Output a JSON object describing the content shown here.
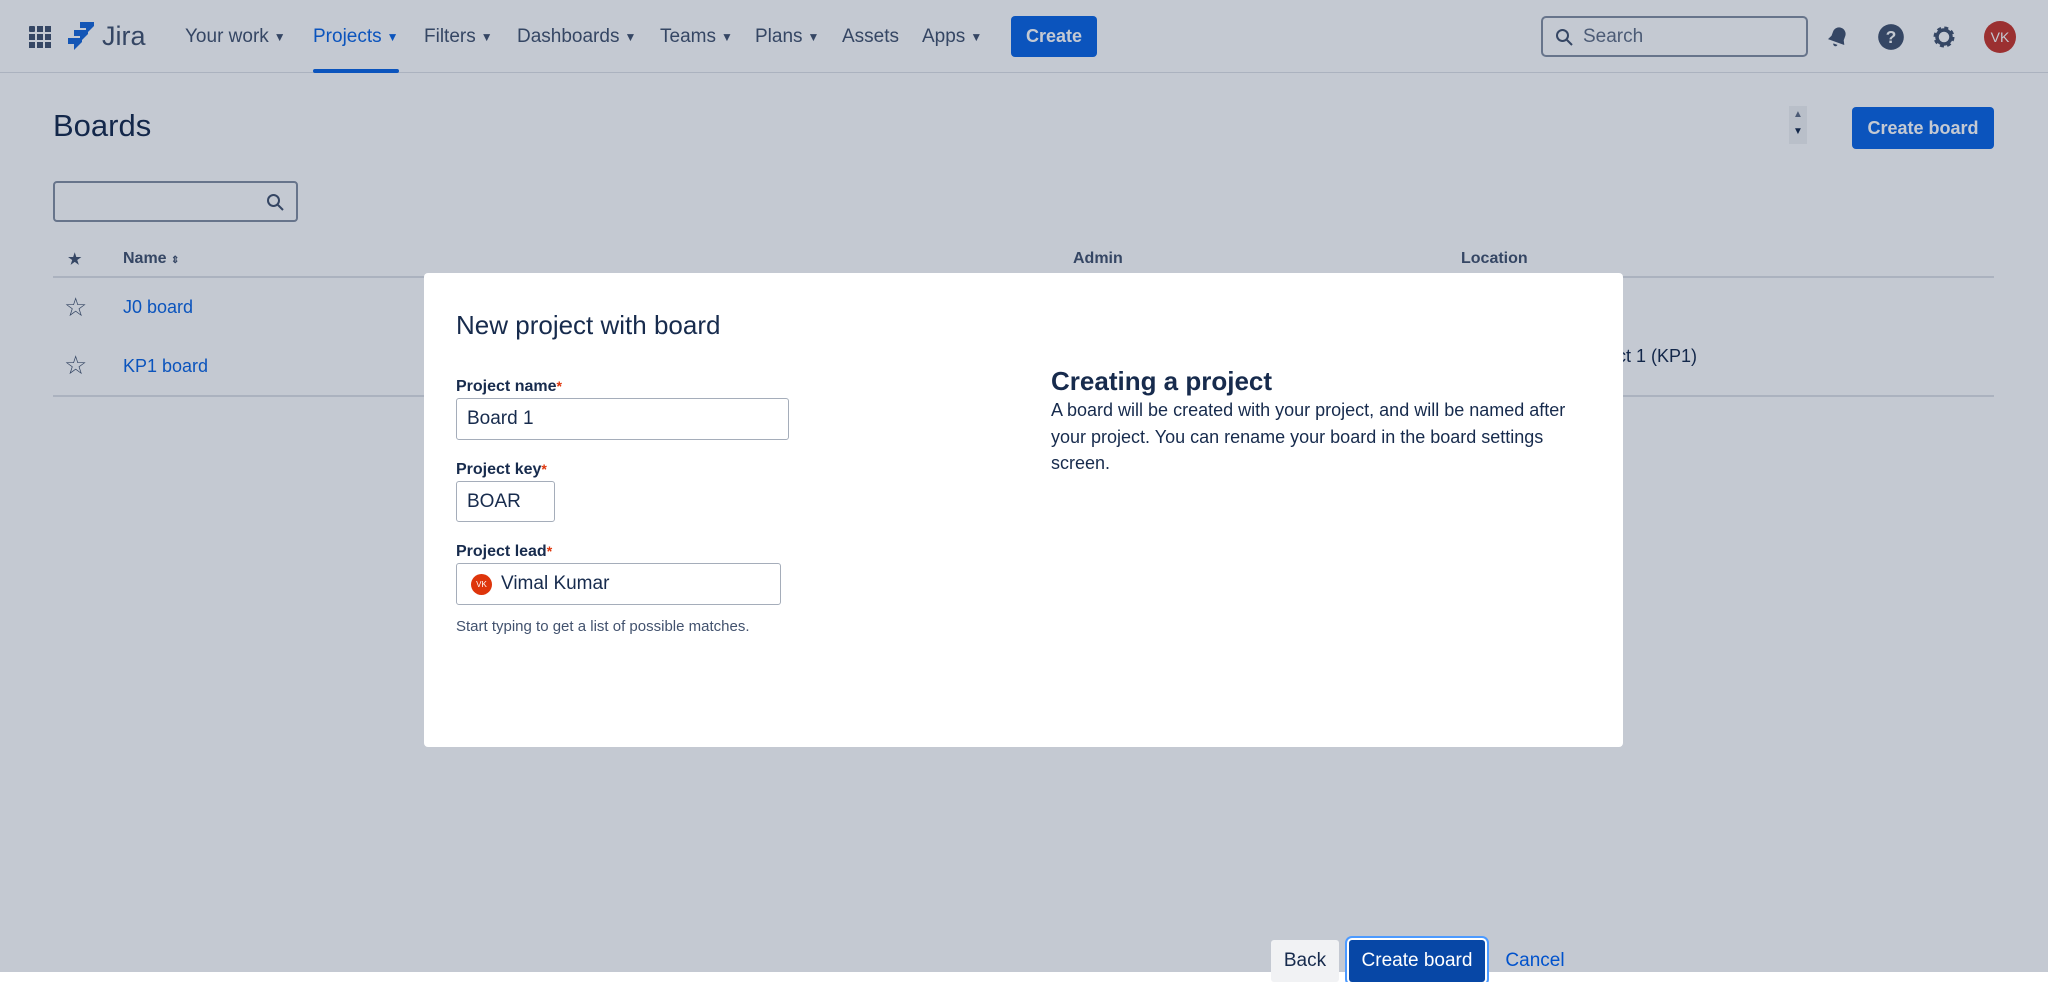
{
  "header": {
    "app_name": "Jira",
    "nav": [
      {
        "label": "Your work",
        "has_menu": true
      },
      {
        "label": "Projects",
        "has_menu": true,
        "active": true
      },
      {
        "label": "Filters",
        "has_menu": true
      },
      {
        "label": "Dashboards",
        "has_menu": true
      },
      {
        "label": "Teams",
        "has_menu": true
      },
      {
        "label": "Plans",
        "has_menu": true
      },
      {
        "label": "Assets",
        "has_menu": false
      },
      {
        "label": "Apps",
        "has_menu": true
      }
    ],
    "create_label": "Create",
    "search_placeholder": "Search",
    "avatar_initials": "VK"
  },
  "page": {
    "title": "Boards",
    "create_board_label": "Create board",
    "search_value": "",
    "table": {
      "columns": [
        "Name",
        "Admin",
        "Location"
      ],
      "rows": [
        {
          "name": "J0 board",
          "location": ""
        },
        {
          "name": "KP1 board",
          "location": "ct 1 (KP1)"
        }
      ]
    }
  },
  "modal": {
    "title": "New project with board",
    "fields": {
      "project_name": {
        "label": "Project name",
        "value": "Board 1"
      },
      "project_key": {
        "label": "Project key",
        "value": "BOAR"
      },
      "project_lead": {
        "label": "Project lead",
        "value": "Vimal Kumar",
        "avatar_initials": "VK",
        "help": "Start typing to get a list of possible matches."
      }
    },
    "required_mark": "*",
    "info_title": "Creating a project",
    "info_text": "A board will be created with your project, and will be named after your project. You can rename your board in the board settings screen.",
    "back_label": "Back",
    "create_label": "Create board",
    "cancel_label": "Cancel"
  },
  "colors": {
    "primary": "#0c66e4",
    "primary_dark": "#0747a6",
    "avatar": "#c9372c"
  }
}
